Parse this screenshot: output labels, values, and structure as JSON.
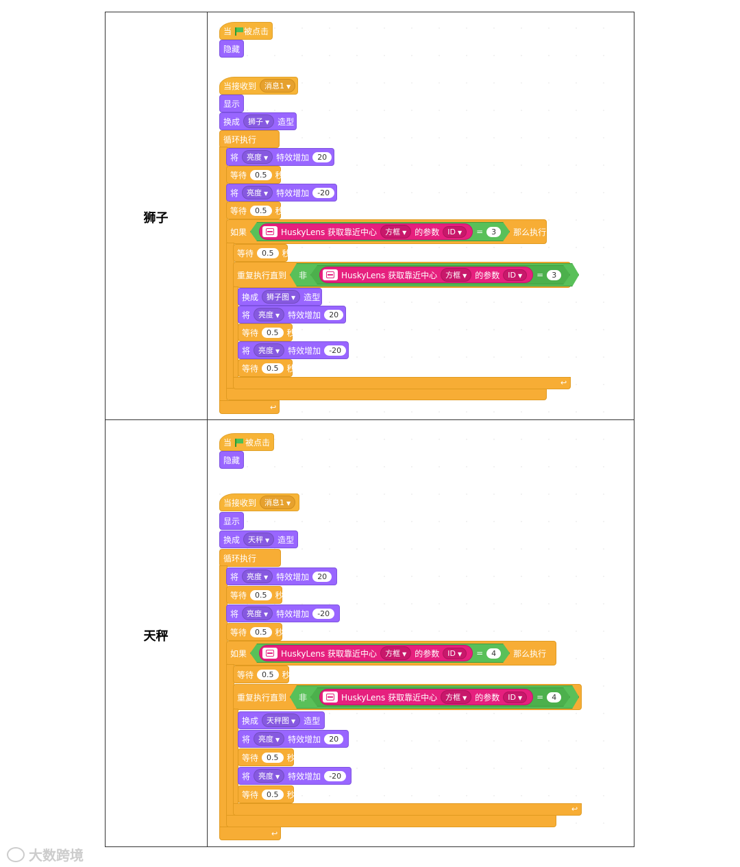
{
  "labels": {
    "row1": "狮子",
    "row2": "天秤"
  },
  "watermark": "大数跨境",
  "common": {
    "when": "当",
    "clicked": "被点击",
    "hide": "隐藏",
    "when_receive": "当接收到",
    "message": "消息1",
    "show": "显示",
    "switch": "换成",
    "costume": "造型",
    "forever": "循环执行",
    "set": "将",
    "effect": "亮度",
    "change_by": "特效增加",
    "wait": "等待",
    "seconds": "秒",
    "if": "如果",
    "then": "那么执行",
    "repeat_until": "重复执行直到",
    "not": "非",
    "husky": "HuskyLens 获取靠近中心",
    "box": "方框",
    "param": "的参数",
    "id": "ID",
    "eq": "=",
    "v20": "20",
    "vm20": "-20",
    "v05": "0.5"
  },
  "row1": {
    "costume1": "狮子",
    "costume2": "狮子图",
    "id_value": "3"
  },
  "row2": {
    "costume1": "天秤",
    "costume2": "天秤图",
    "id_value": "4"
  }
}
